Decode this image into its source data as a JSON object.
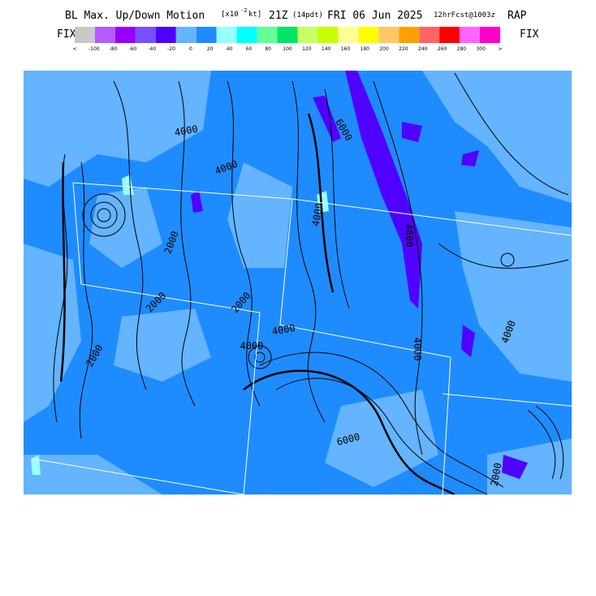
{
  "header": {
    "title": "BL Max. Up/Down Motion",
    "units_open": "[x10",
    "units_exp": "-2",
    "units_close": "kt]",
    "valid": "21Z",
    "local": "(14pdt)",
    "date": "FRI 06 Jun 2025",
    "forecast": "12hrFcst@1003z",
    "model": "RAP"
  },
  "legend": {
    "left": "FIX",
    "right": "FIX",
    "labels": [
      "<",
      "-100",
      "-80",
      "-60",
      "-40",
      "-20",
      "0",
      "20",
      "40",
      "60",
      "80",
      "100",
      "120",
      "140",
      "160",
      "180",
      "200",
      "220",
      "240",
      "260",
      "280",
      "300",
      ">"
    ],
    "colors": [
      "#c8c8c8",
      "#b45aff",
      "#9600ff",
      "#7850ff",
      "#5000ff",
      "#64b4ff",
      "#1e8cff",
      "#96ffff",
      "#00ffff",
      "#64ff96",
      "#00e664",
      "#c8ff64",
      "#c8ff00",
      "#ffff96",
      "#ffff00",
      "#ffc864",
      "#ffa000",
      "#ff6464",
      "#ff0000",
      "#ff64ff",
      "#ff00c8"
    ]
  },
  "map": {
    "contour_labels": [
      "4000",
      "4000",
      "2000",
      "2000",
      "2000",
      "4000",
      "2000",
      "4000",
      "4000",
      "6000",
      "4000",
      "4000",
      "4000",
      "6000",
      "2000"
    ]
  }
}
